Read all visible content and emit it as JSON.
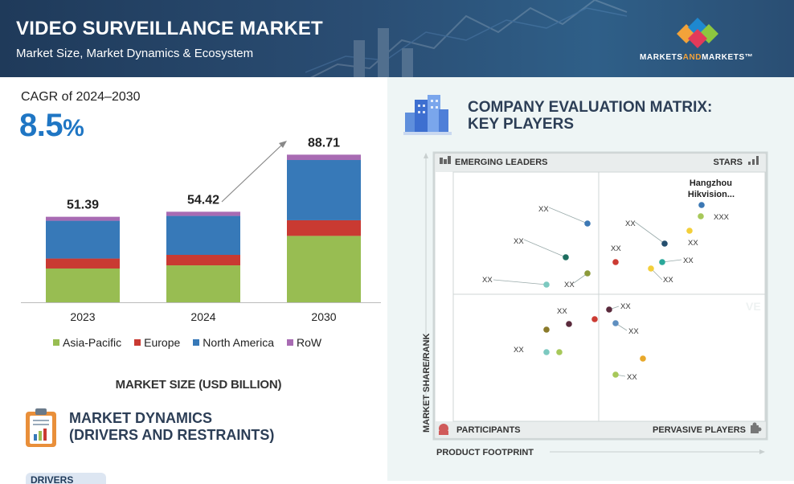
{
  "header": {
    "title": "VIDEO SURVEILLANCE MARKET",
    "subtitle": "Market Size, Market Dynamics & Ecosystem",
    "logo_text_1": "MARKETS",
    "logo_text_2": "AND",
    "logo_text_3": "MARKETS",
    "logo_tm": "™"
  },
  "cagr": {
    "label": "CAGR of 2024–2030",
    "value": "8.5",
    "unit": "%"
  },
  "market_size_label": "MARKET SIZE (USD BILLION)",
  "dynamics": {
    "title_line1": "MARKET DYNAMICS",
    "title_line2": "(DRIVERS AND RESTRAINTS)",
    "drivers_tab": "DRIVERS"
  },
  "matrix": {
    "title_line1": "COMPANY EVALUATION MATRIX:",
    "title_line2": "KEY PLAYERS",
    "quadrants": {
      "top_left": "EMERGING LEADERS",
      "top_right": "STARS",
      "bottom_left": "PARTICIPANTS",
      "bottom_right": "PERVASIVE PLAYERS"
    },
    "y_axis": "MARKET SHARE/RANK",
    "x_axis": "PRODUCT FOOTPRINT",
    "watermark": "VE",
    "companies": [
      {
        "label": "Hangzhou",
        "label2": "Hikvision...",
        "color": "#3c78b4"
      },
      {
        "label": "XXX",
        "color": "#a7c85a"
      },
      {
        "label": "XX",
        "color": "#f3cf3a"
      },
      {
        "label": "XX",
        "color": "#244e6e"
      },
      {
        "label": "XX",
        "color": "#2aa89a"
      },
      {
        "label": "XX",
        "color": "#f3cf3a"
      },
      {
        "label": "XX",
        "color": "#cc3b33"
      },
      {
        "label": "XX",
        "color": "#3c78b4"
      },
      {
        "label": "XX",
        "color": "#1d6d5f"
      },
      {
        "label": "XX",
        "color": "#8c9a3a"
      },
      {
        "label": "XX",
        "color": "#7cc9c0"
      },
      {
        "label": "XX",
        "color": "#5a2a3c"
      },
      {
        "label": "XX",
        "color": "#5a2a3c"
      },
      {
        "label": "XX",
        "color": "#8a7a2a"
      },
      {
        "label": "XX",
        "color": "#cc3b33"
      },
      {
        "label": "XX",
        "color": "#5f8fc0"
      },
      {
        "label": "XX",
        "color": "#7cc9c0"
      },
      {
        "label": "",
        "color": "#a7c85a"
      },
      {
        "label": "",
        "color": "#e8a82a"
      },
      {
        "label": "XX",
        "color": "#a7c85a"
      }
    ]
  },
  "colors": {
    "asia_pacific": "#98bd52",
    "europe": "#c93a32",
    "north_america": "#3779b8",
    "row": "#a86bb3",
    "accent_blue": "#1f76c4"
  },
  "chart_data": {
    "type": "bar",
    "stacked": true,
    "categories": [
      "2023",
      "2024",
      "2030"
    ],
    "totals": [
      51.39,
      54.42,
      88.71
    ],
    "series": [
      {
        "name": "Asia-Pacific",
        "values": [
          20.3,
          22.2,
          39.9
        ]
      },
      {
        "name": "Europe",
        "values": [
          6.0,
          6.3,
          9.4
        ]
      },
      {
        "name": "North America",
        "values": [
          22.7,
          23.4,
          36.2
        ]
      },
      {
        "name": "RoW",
        "values": [
          2.39,
          2.52,
          3.21
        ]
      }
    ],
    "title": "",
    "xlabel": "",
    "ylabel": "MARKET SIZE (USD BILLION)",
    "legend_position": "bottom"
  }
}
